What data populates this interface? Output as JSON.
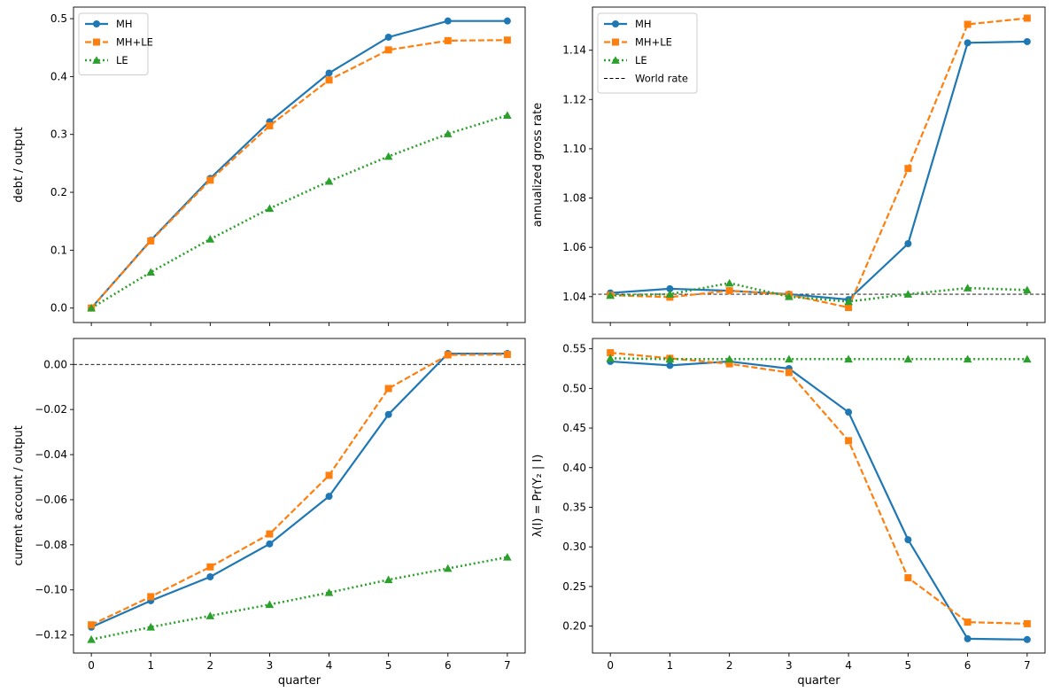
{
  "chart_data": [
    {
      "type": "line",
      "x": [
        0,
        1,
        2,
        3,
        4,
        5,
        6,
        7
      ],
      "xticks": [
        "0",
        "1",
        "2",
        "3",
        "4",
        "5",
        "6",
        "7"
      ],
      "show_xtick_labels": false,
      "xlabel": "",
      "ylabel": "debt / output",
      "xlim": [
        -0.3,
        7.3
      ],
      "ylim": [
        -0.025,
        0.52
      ],
      "yticks": [
        0.0,
        0.1,
        0.2,
        0.3,
        0.4,
        0.5
      ],
      "ytick_labels": [
        "0.0",
        "0.1",
        "0.2",
        "0.3",
        "0.4",
        "0.5"
      ],
      "hline": null,
      "legend": {
        "placement": "upper-left",
        "entries": [
          "MH",
          "MH+LE",
          "LE"
        ]
      },
      "series": [
        {
          "name": "MH",
          "color": "#1f77b4",
          "dash": "solid",
          "marker": "circle",
          "values": [
            0.0,
            0.117,
            0.224,
            0.322,
            0.406,
            0.468,
            0.496,
            0.496
          ]
        },
        {
          "name": "MH+LE",
          "color": "#ff7f0e",
          "dash": "dashed",
          "marker": "square",
          "values": [
            0.0,
            0.116,
            0.221,
            0.315,
            0.394,
            0.446,
            0.462,
            0.463
          ]
        },
        {
          "name": "LE",
          "color": "#2ca02c",
          "dash": "dotted",
          "marker": "triangle",
          "values": [
            0.0,
            0.062,
            0.119,
            0.172,
            0.219,
            0.262,
            0.301,
            0.333
          ]
        }
      ]
    },
    {
      "type": "line",
      "x": [
        0,
        1,
        2,
        3,
        4,
        5,
        6,
        7
      ],
      "xticks": [
        "0",
        "1",
        "2",
        "3",
        "4",
        "5",
        "6",
        "7"
      ],
      "show_xtick_labels": false,
      "xlabel": "",
      "ylabel": "annualized gross rate",
      "xlim": [
        -0.3,
        7.3
      ],
      "ylim": [
        1.0295,
        1.1575
      ],
      "yticks": [
        1.04,
        1.06,
        1.08,
        1.1,
        1.12,
        1.14
      ],
      "ytick_labels": [
        "1.04",
        "1.06",
        "1.08",
        "1.10",
        "1.12",
        "1.14"
      ],
      "hline": {
        "y": 1.041,
        "label": "World rate"
      },
      "legend": {
        "placement": "upper-left",
        "entries": [
          "MH",
          "MH+LE",
          "LE",
          "World rate"
        ]
      },
      "series": [
        {
          "name": "MH",
          "color": "#1f77b4",
          "dash": "solid",
          "marker": "circle",
          "values": [
            1.0415,
            1.0432,
            1.0424,
            1.041,
            1.0388,
            1.0615,
            1.143,
            1.1435
          ]
        },
        {
          "name": "MH+LE",
          "color": "#ff7f0e",
          "dash": "dashed",
          "marker": "square",
          "values": [
            1.0406,
            1.0398,
            1.0424,
            1.0408,
            1.0356,
            1.092,
            1.1505,
            1.153
          ]
        },
        {
          "name": "LE",
          "color": "#2ca02c",
          "dash": "dotted",
          "marker": "triangle",
          "values": [
            1.0405,
            1.041,
            1.0455,
            1.04,
            1.038,
            1.041,
            1.0435,
            1.0427
          ]
        }
      ]
    },
    {
      "type": "line",
      "x": [
        0,
        1,
        2,
        3,
        4,
        5,
        6,
        7
      ],
      "xticks": [
        "0",
        "1",
        "2",
        "3",
        "4",
        "5",
        "6",
        "7"
      ],
      "show_xtick_labels": true,
      "xlabel": "quarter",
      "ylabel": "current account / output",
      "xlim": [
        -0.3,
        7.3
      ],
      "ylim": [
        -0.128,
        0.0115
      ],
      "yticks": [
        0.0,
        -0.02,
        -0.04,
        -0.06,
        -0.08,
        -0.1,
        -0.12
      ],
      "ytick_labels": [
        "0.00",
        "−0.02",
        "−0.04",
        "−0.06",
        "−0.08",
        "−0.10",
        "−0.12"
      ],
      "hline": {
        "y": 0.0,
        "label": ""
      },
      "legend": null,
      "series": [
        {
          "name": "MH",
          "color": "#1f77b4",
          "dash": "solid",
          "marker": "circle",
          "values": [
            -0.1165,
            -0.1048,
            -0.0942,
            -0.0796,
            -0.0585,
            -0.0222,
            0.0048,
            0.0048
          ]
        },
        {
          "name": "MH+LE",
          "color": "#ff7f0e",
          "dash": "dashed",
          "marker": "square",
          "values": [
            -0.1155,
            -0.103,
            -0.0898,
            -0.0752,
            -0.0492,
            -0.0107,
            0.0042,
            0.0044
          ]
        },
        {
          "name": "LE",
          "color": "#2ca02c",
          "dash": "dotted",
          "marker": "triangle",
          "values": [
            -0.122,
            -0.1165,
            -0.1115,
            -0.1065,
            -0.1012,
            -0.0955,
            -0.0905,
            -0.0855
          ]
        }
      ]
    },
    {
      "type": "line",
      "x": [
        0,
        1,
        2,
        3,
        4,
        5,
        6,
        7
      ],
      "xticks": [
        "0",
        "1",
        "2",
        "3",
        "4",
        "5",
        "6",
        "7"
      ],
      "show_xtick_labels": true,
      "xlabel": "quarter",
      "ylabel": "λ(I) = Pr(Y₂ | I)",
      "xlim": [
        -0.3,
        7.3
      ],
      "ylim": [
        0.166,
        0.563
      ],
      "yticks": [
        0.2,
        0.25,
        0.3,
        0.35,
        0.4,
        0.45,
        0.5,
        0.55
      ],
      "ytick_labels": [
        "0.20",
        "0.25",
        "0.30",
        "0.35",
        "0.40",
        "0.45",
        "0.50",
        "0.55"
      ],
      "hline": null,
      "legend": null,
      "series": [
        {
          "name": "MH",
          "color": "#1f77b4",
          "dash": "solid",
          "marker": "circle",
          "values": [
            0.534,
            0.529,
            0.534,
            0.525,
            0.47,
            0.309,
            0.184,
            0.183
          ]
        },
        {
          "name": "MH+LE",
          "color": "#ff7f0e",
          "dash": "dashed",
          "marker": "square",
          "values": [
            0.545,
            0.538,
            0.531,
            0.52,
            0.434,
            0.261,
            0.205,
            0.203
          ]
        },
        {
          "name": "LE",
          "color": "#2ca02c",
          "dash": "dotted",
          "marker": "triangle",
          "values": [
            0.538,
            0.537,
            0.537,
            0.537,
            0.537,
            0.537,
            0.537,
            0.537
          ]
        }
      ]
    }
  ]
}
